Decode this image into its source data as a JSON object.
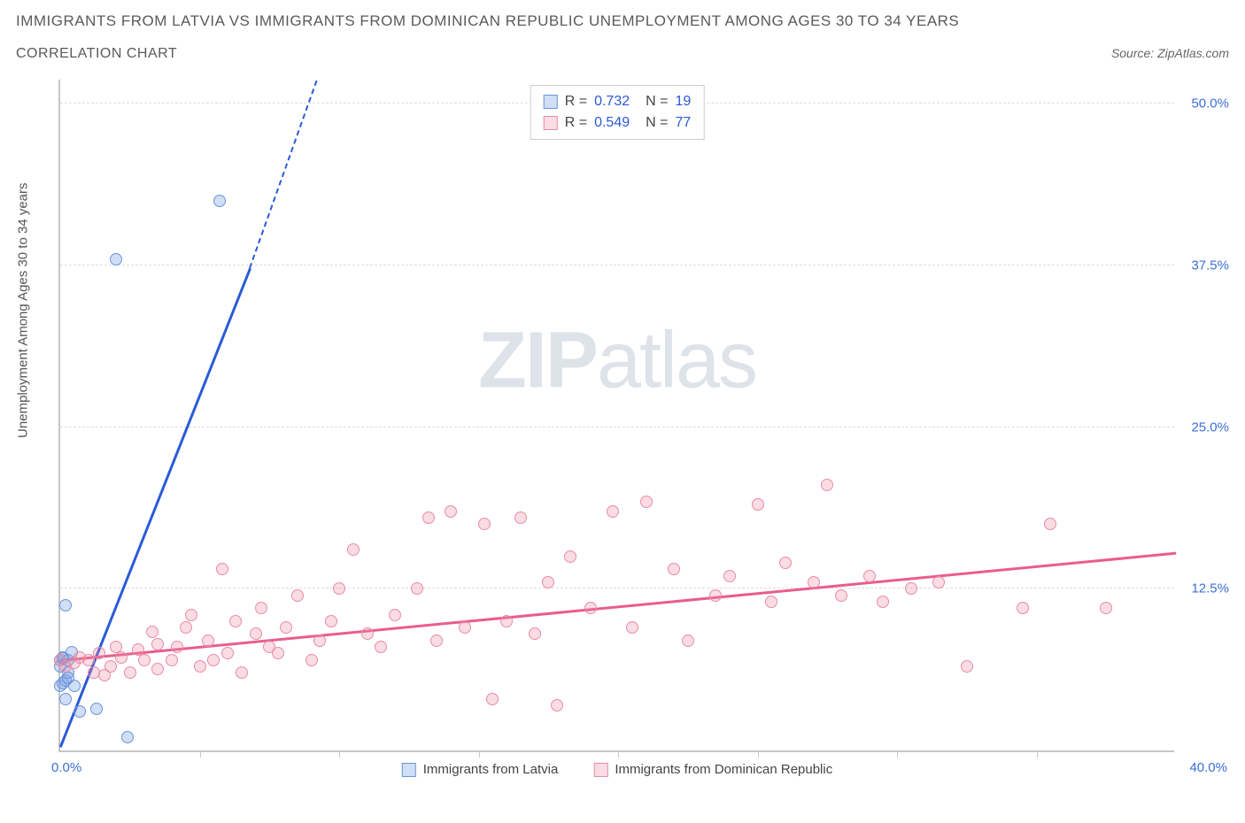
{
  "header": {
    "title_line1": "IMMIGRANTS FROM LATVIA VS IMMIGRANTS FROM DOMINICAN REPUBLIC UNEMPLOYMENT AMONG AGES 30 TO 34 YEARS",
    "title_line2": "CORRELATION CHART",
    "source": "Source: ZipAtlas.com"
  },
  "chart": {
    "type": "scatter",
    "y_axis_label": "Unemployment Among Ages 30 to 34 years",
    "xlim": [
      0,
      40
    ],
    "ylim": [
      0,
      52
    ],
    "x_ticks_minor": [
      5,
      10,
      15,
      20,
      25,
      30,
      35
    ],
    "x_tick_labels": {
      "left": "0.0%",
      "right": "40.0%"
    },
    "y_ticks": [
      {
        "v": 12.5,
        "label": "12.5%"
      },
      {
        "v": 25.0,
        "label": "25.0%"
      },
      {
        "v": 37.5,
        "label": "37.5%"
      },
      {
        "v": 50.0,
        "label": "50.0%"
      }
    ],
    "background_color": "#ffffff",
    "grid_color": "#dcdcdc",
    "axis_color": "#c7c7c7",
    "marker_radius": 7,
    "series": [
      {
        "name": "Immigrants from Latvia",
        "short": "latvia",
        "color_fill": "rgba(120,160,230,0.35)",
        "color_stroke": "#6a94d9",
        "line_color": "#2a5ad6",
        "R": "0.732",
        "N": "19",
        "trend": {
          "x1": 0.0,
          "y1": 0.5,
          "x2": 6.8,
          "y2": 37.5,
          "dash_to_x": 9.2,
          "dash_to_y": 52.0
        },
        "points": [
          [
            0.0,
            5.0
          ],
          [
            0.1,
            5.2
          ],
          [
            0.2,
            5.4
          ],
          [
            0.0,
            7.0
          ],
          [
            0.1,
            7.1
          ],
          [
            0.2,
            11.2
          ],
          [
            0.3,
            6.0
          ],
          [
            0.4,
            7.6
          ],
          [
            0.3,
            5.6
          ],
          [
            0.5,
            5.0
          ],
          [
            0.7,
            3.0
          ],
          [
            1.3,
            3.2
          ],
          [
            2.4,
            1.0
          ],
          [
            0.2,
            4.0
          ],
          [
            0.0,
            6.5
          ],
          [
            0.3,
            7.0
          ],
          [
            0.1,
            7.2
          ],
          [
            2.0,
            38.0
          ],
          [
            5.7,
            42.5
          ]
        ]
      },
      {
        "name": "Immigrants from Dominican Republic",
        "short": "dominican",
        "color_fill": "rgba(240,140,170,0.30)",
        "color_stroke": "#e88ba5",
        "line_color": "#e85d8d",
        "R": "0.549",
        "N": "77",
        "trend": {
          "x1": 0.0,
          "y1": 7.2,
          "x2": 40.0,
          "y2": 15.5
        },
        "points": [
          [
            0.0,
            7.0
          ],
          [
            0.2,
            6.5
          ],
          [
            0.5,
            6.8
          ],
          [
            0.7,
            7.2
          ],
          [
            1.0,
            7.0
          ],
          [
            1.2,
            6.0
          ],
          [
            1.4,
            7.5
          ],
          [
            1.6,
            5.8
          ],
          [
            1.8,
            6.5
          ],
          [
            2.0,
            8.0
          ],
          [
            2.2,
            7.2
          ],
          [
            2.5,
            6.0
          ],
          [
            2.8,
            7.8
          ],
          [
            3.0,
            7.0
          ],
          [
            3.3,
            9.2
          ],
          [
            3.5,
            8.2
          ],
          [
            3.5,
            6.3
          ],
          [
            4.0,
            7.0
          ],
          [
            4.2,
            8.0
          ],
          [
            4.5,
            9.5
          ],
          [
            4.7,
            10.5
          ],
          [
            5.0,
            6.5
          ],
          [
            5.3,
            8.5
          ],
          [
            5.5,
            7.0
          ],
          [
            5.8,
            14.0
          ],
          [
            6.0,
            7.5
          ],
          [
            6.3,
            10.0
          ],
          [
            6.5,
            6.0
          ],
          [
            7.0,
            9.0
          ],
          [
            7.2,
            11.0
          ],
          [
            7.5,
            8.0
          ],
          [
            7.8,
            7.5
          ],
          [
            8.1,
            9.5
          ],
          [
            8.5,
            12.0
          ],
          [
            9.0,
            7.0
          ],
          [
            9.3,
            8.5
          ],
          [
            9.7,
            10.0
          ],
          [
            10.0,
            12.5
          ],
          [
            10.5,
            15.5
          ],
          [
            11.0,
            9.0
          ],
          [
            11.5,
            8.0
          ],
          [
            12.0,
            10.5
          ],
          [
            12.8,
            12.5
          ],
          [
            13.2,
            18.0
          ],
          [
            13.5,
            8.5
          ],
          [
            14.0,
            18.5
          ],
          [
            14.5,
            9.5
          ],
          [
            15.2,
            17.5
          ],
          [
            15.5,
            4.0
          ],
          [
            16.0,
            10.0
          ],
          [
            16.5,
            18.0
          ],
          [
            17.0,
            9.0
          ],
          [
            17.5,
            13.0
          ],
          [
            17.8,
            3.5
          ],
          [
            18.3,
            15.0
          ],
          [
            19.0,
            11.0
          ],
          [
            19.8,
            18.5
          ],
          [
            20.5,
            9.5
          ],
          [
            21.0,
            19.2
          ],
          [
            22.0,
            14.0
          ],
          [
            22.5,
            8.5
          ],
          [
            23.5,
            12.0
          ],
          [
            24.0,
            13.5
          ],
          [
            25.0,
            19.0
          ],
          [
            25.5,
            11.5
          ],
          [
            26.0,
            14.5
          ],
          [
            27.0,
            13.0
          ],
          [
            27.5,
            20.5
          ],
          [
            28.0,
            12.0
          ],
          [
            29.0,
            13.5
          ],
          [
            29.5,
            11.5
          ],
          [
            30.5,
            12.5
          ],
          [
            31.5,
            13.0
          ],
          [
            32.5,
            6.5
          ],
          [
            34.5,
            11.0
          ],
          [
            35.5,
            17.5
          ],
          [
            37.5,
            11.0
          ]
        ]
      }
    ],
    "legend_bottom": [
      {
        "swatch_fill": "rgba(120,160,230,0.35)",
        "swatch_stroke": "#6a94d9",
        "label": "Immigrants from Latvia"
      },
      {
        "swatch_fill": "rgba(240,140,170,0.30)",
        "swatch_stroke": "#e88ba5",
        "label": "Immigrants from Dominican Republic"
      }
    ]
  },
  "watermark": {
    "zip": "ZIP",
    "atlas": "atlas"
  }
}
